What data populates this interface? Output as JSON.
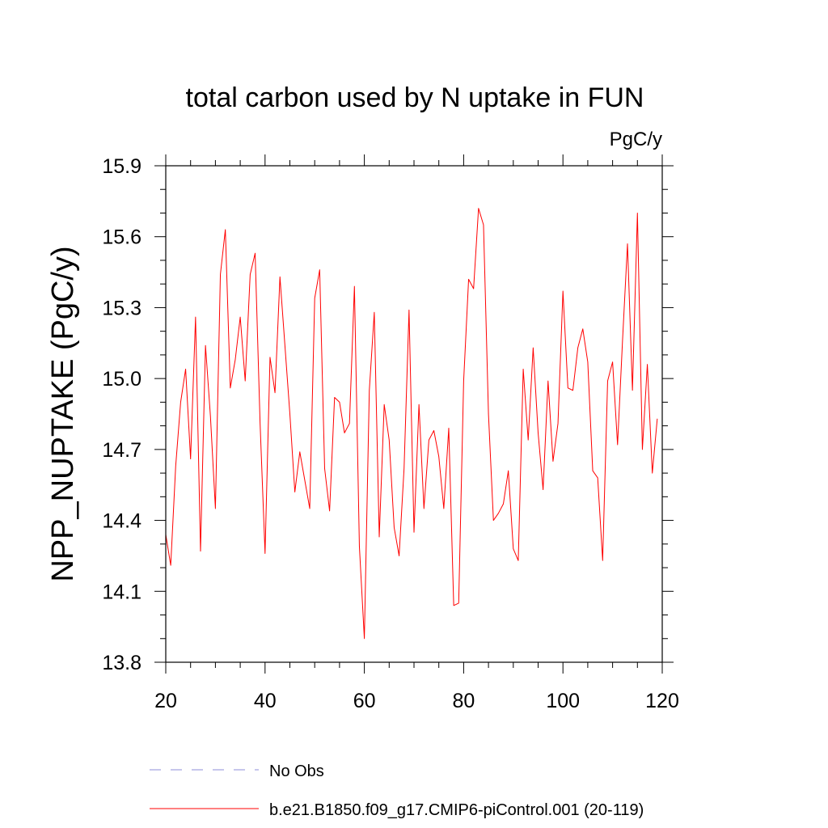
{
  "chart_data": {
    "type": "line",
    "title": "total carbon used by N uptake in FUN",
    "units_label": "PgC/y",
    "xlabel": "",
    "ylabel": "NPP_NUPTAKE  (PgC/y)",
    "xlim": [
      20,
      120
    ],
    "ylim": [
      13.8,
      15.9
    ],
    "x_major_ticks": [
      20,
      40,
      60,
      80,
      100,
      120
    ],
    "x_minor_step": 5,
    "y_major_ticks": [
      "13.8",
      "14.1",
      "14.4",
      "14.7",
      "15.0",
      "15.3",
      "15.6",
      "15.9"
    ],
    "y_minor_step": 0.1,
    "grid": false,
    "legend_position": "bottom",
    "series": [
      {
        "name": "No Obs",
        "color": "#8c8cd9",
        "dash": "dashed",
        "x": [],
        "y": []
      },
      {
        "name": "b.e21.B1850.f09_g17.CMIP6-piControl.001 (20-119)",
        "color": "#ff0000",
        "dash": "solid",
        "x": [
          20,
          21,
          22,
          23,
          24,
          25,
          26,
          27,
          28,
          29,
          30,
          31,
          32,
          33,
          34,
          35,
          36,
          37,
          38,
          39,
          40,
          41,
          42,
          43,
          44,
          45,
          46,
          47,
          48,
          49,
          50,
          51,
          52,
          53,
          54,
          55,
          56,
          57,
          58,
          59,
          60,
          61,
          62,
          63,
          64,
          65,
          66,
          67,
          68,
          69,
          70,
          71,
          72,
          73,
          74,
          75,
          76,
          77,
          78,
          79,
          80,
          81,
          82,
          83,
          84,
          85,
          86,
          87,
          88,
          89,
          90,
          91,
          92,
          93,
          94,
          95,
          96,
          97,
          98,
          99,
          100,
          101,
          102,
          103,
          104,
          105,
          106,
          107,
          108,
          109,
          110,
          111,
          112,
          113,
          114,
          115,
          116,
          117,
          118,
          119
        ],
        "y": [
          14.34,
          14.21,
          14.63,
          14.9,
          15.04,
          14.66,
          15.26,
          14.27,
          15.14,
          14.84,
          14.45,
          15.44,
          15.63,
          14.96,
          15.08,
          15.26,
          14.99,
          15.44,
          15.53,
          14.81,
          14.26,
          15.09,
          14.94,
          15.43,
          15.14,
          14.85,
          14.52,
          14.69,
          14.57,
          14.45,
          15.34,
          15.46,
          14.62,
          14.44,
          14.92,
          14.9,
          14.77,
          14.81,
          15.39,
          14.29,
          13.9,
          14.95,
          15.28,
          14.33,
          14.89,
          14.74,
          14.37,
          14.25,
          14.62,
          15.29,
          14.35,
          14.89,
          14.45,
          14.74,
          14.78,
          14.67,
          14.45,
          14.79,
          14.04,
          14.05,
          14.99,
          15.42,
          15.38,
          15.72,
          15.65,
          14.85,
          14.4,
          14.43,
          14.47,
          14.61,
          14.28,
          14.23,
          15.04,
          14.74,
          15.13,
          14.77,
          14.53,
          14.99,
          14.65,
          14.81,
          15.37,
          14.96,
          14.95,
          15.13,
          15.21,
          15.07,
          14.61,
          14.58,
          14.23,
          14.99,
          15.07,
          14.72,
          15.16,
          15.57,
          14.95,
          15.7,
          14.7,
          15.06,
          14.6,
          14.83
        ]
      }
    ]
  }
}
